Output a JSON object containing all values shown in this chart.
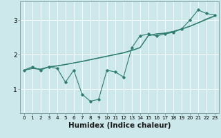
{
  "x": [
    0,
    1,
    2,
    3,
    4,
    5,
    6,
    7,
    8,
    9,
    10,
    11,
    12,
    13,
    14,
    15,
    16,
    17,
    18,
    19,
    20,
    21,
    22,
    23
  ],
  "line_zigzag": [
    1.55,
    1.65,
    1.55,
    1.65,
    1.6,
    1.2,
    1.55,
    0.85,
    0.65,
    0.7,
    1.55,
    1.5,
    1.35,
    2.2,
    2.55,
    2.6,
    2.55,
    2.6,
    2.65,
    2.75,
    3.0,
    3.3,
    3.2,
    3.15
  ],
  "line_straight1": [
    1.55,
    1.6,
    1.58,
    1.65,
    1.68,
    1.72,
    1.76,
    1.8,
    1.85,
    1.9,
    1.95,
    2.0,
    2.05,
    2.12,
    2.2,
    2.55,
    2.6,
    2.62,
    2.67,
    2.74,
    2.82,
    2.92,
    3.02,
    3.12
  ],
  "line_straight2": [
    1.55,
    1.6,
    1.58,
    1.64,
    1.67,
    1.71,
    1.76,
    1.81,
    1.86,
    1.91,
    1.96,
    2.01,
    2.06,
    2.13,
    2.21,
    2.56,
    2.61,
    2.63,
    2.68,
    2.75,
    2.83,
    2.93,
    3.04,
    3.13
  ],
  "bg_color": "#cce8ea",
  "line_color": "#2e7d6e",
  "grid_color": "#ffffff",
  "xlabel": "Humidex (Indice chaleur)",
  "xlabel_fontsize": 7.5,
  "tick_fontsize": 6.5,
  "ylim": [
    0.3,
    3.55
  ],
  "xlim": [
    -0.5,
    23.5
  ],
  "yticks": [
    1,
    2,
    3
  ],
  "xticks": [
    0,
    1,
    2,
    3,
    4,
    5,
    6,
    7,
    8,
    9,
    10,
    11,
    12,
    13,
    14,
    15,
    16,
    17,
    18,
    19,
    20,
    21,
    22,
    23
  ]
}
